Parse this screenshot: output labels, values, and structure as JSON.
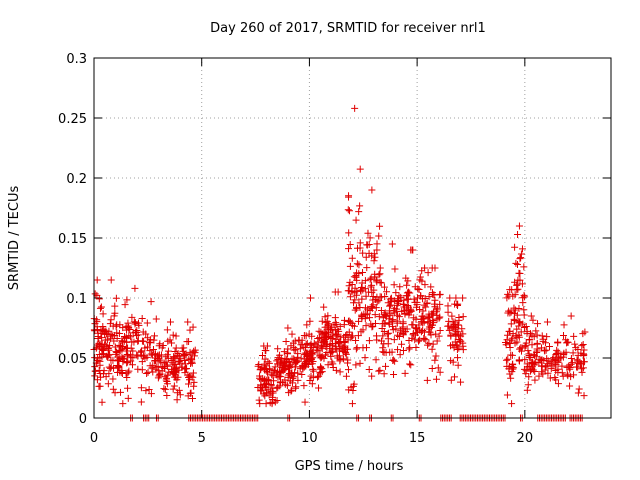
{
  "chart_data": {
    "type": "scatter",
    "title": "Day 260 of 2017, SRMTID for receiver nrl1",
    "xlabel": "GPS time / hours",
    "ylabel": "SRMTID / TECUs",
    "xlim": [
      0,
      24
    ],
    "ylim": [
      0,
      0.3
    ],
    "x_ticks": [
      0,
      5,
      10,
      15,
      20
    ],
    "x_tick_labels": [
      "0",
      "5",
      "10",
      "15",
      "20"
    ],
    "y_ticks": [
      0,
      0.05,
      0.1,
      0.15,
      0.2,
      0.25,
      0.3
    ],
    "y_tick_labels": [
      "0",
      "0.05",
      "0.1",
      "0.15",
      "0.2",
      "0.25",
      "0.3"
    ],
    "grid": true,
    "marker": "+",
    "color": "#e00000",
    "series": [
      {
        "name": "SRMTID",
        "clusters": [
          {
            "x": [
              0.0,
              1.6
            ],
            "y_center": 0.06,
            "y_spread": 0.018,
            "y_max": 0.115,
            "n": 170
          },
          {
            "x": [
              1.6,
              2.2
            ],
            "y_center": 0.063,
            "y_spread": 0.015,
            "y_max": 0.108,
            "n": 35
          },
          {
            "x": [
              2.2,
              3.1
            ],
            "y_center": 0.05,
            "y_spread": 0.012,
            "y_max": 0.097,
            "n": 60
          },
          {
            "x": [
              3.1,
              4.0
            ],
            "y_center": 0.045,
            "y_spread": 0.012,
            "y_max": 0.08,
            "n": 70
          },
          {
            "x": [
              4.0,
              4.7
            ],
            "y_center": 0.042,
            "y_spread": 0.012,
            "y_max": 0.08,
            "n": 50
          },
          {
            "x": [
              7.6,
              8.5
            ],
            "y_center": 0.033,
            "y_spread": 0.01,
            "y_max": 0.06,
            "n": 80
          },
          {
            "x": [
              8.5,
              9.5
            ],
            "y_center": 0.042,
            "y_spread": 0.012,
            "y_max": 0.075,
            "n": 90
          },
          {
            "x": [
              9.5,
              10.6
            ],
            "y_center": 0.052,
            "y_spread": 0.012,
            "y_max": 0.1,
            "n": 100
          },
          {
            "x": [
              10.6,
              11.8
            ],
            "y_center": 0.065,
            "y_spread": 0.012,
            "y_max": 0.105,
            "n": 110
          },
          {
            "x": [
              11.8,
              12.4
            ],
            "y_center": 0.1,
            "y_spread": 0.045,
            "y_max": 0.258,
            "n": 70
          },
          {
            "x": [
              12.4,
              13.4
            ],
            "y_center": 0.1,
            "y_spread": 0.03,
            "y_max": 0.19,
            "n": 90
          },
          {
            "x": [
              13.4,
              14.3
            ],
            "y_center": 0.08,
            "y_spread": 0.02,
            "y_max": 0.145,
            "n": 80
          },
          {
            "x": [
              14.3,
              15.3
            ],
            "y_center": 0.085,
            "y_spread": 0.02,
            "y_max": 0.14,
            "n": 90
          },
          {
            "x": [
              15.3,
              16.1
            ],
            "y_center": 0.08,
            "y_spread": 0.02,
            "y_max": 0.125,
            "n": 70
          },
          {
            "x": [
              16.4,
              17.2
            ],
            "y_center": 0.07,
            "y_spread": 0.015,
            "y_max": 0.1,
            "n": 60
          },
          {
            "x": [
              19.1,
              19.5
            ],
            "y_center": 0.055,
            "y_spread": 0.025,
            "y_max": 0.107,
            "n": 40
          },
          {
            "x": [
              19.5,
              20.0
            ],
            "y_center": 0.085,
            "y_spread": 0.03,
            "y_max": 0.16,
            "n": 55
          },
          {
            "x": [
              20.0,
              20.6
            ],
            "y_center": 0.055,
            "y_spread": 0.012,
            "y_max": 0.085,
            "n": 50
          },
          {
            "x": [
              20.6,
              21.5
            ],
            "y_center": 0.05,
            "y_spread": 0.01,
            "y_max": 0.08,
            "n": 45
          },
          {
            "x": [
              21.5,
              22.8
            ],
            "y_center": 0.045,
            "y_spread": 0.012,
            "y_max": 0.085,
            "n": 70
          }
        ],
        "zero_runs": [
          [
            1.7,
            1.8
          ],
          [
            2.3,
            2.6
          ],
          [
            2.9,
            3.0
          ],
          [
            4.4,
            7.6
          ],
          [
            9.0,
            9.1
          ],
          [
            12.2,
            12.3
          ],
          [
            12.8,
            12.9
          ],
          [
            13.8,
            13.9
          ],
          [
            15.1,
            15.2
          ],
          [
            16.1,
            16.6
          ],
          [
            17.0,
            19.1
          ],
          [
            19.8,
            19.9
          ],
          [
            20.6,
            21.4
          ],
          [
            21.4,
            21.9
          ],
          [
            22.1,
            22.7
          ]
        ],
        "zero_step": 0.08
      }
    ]
  }
}
